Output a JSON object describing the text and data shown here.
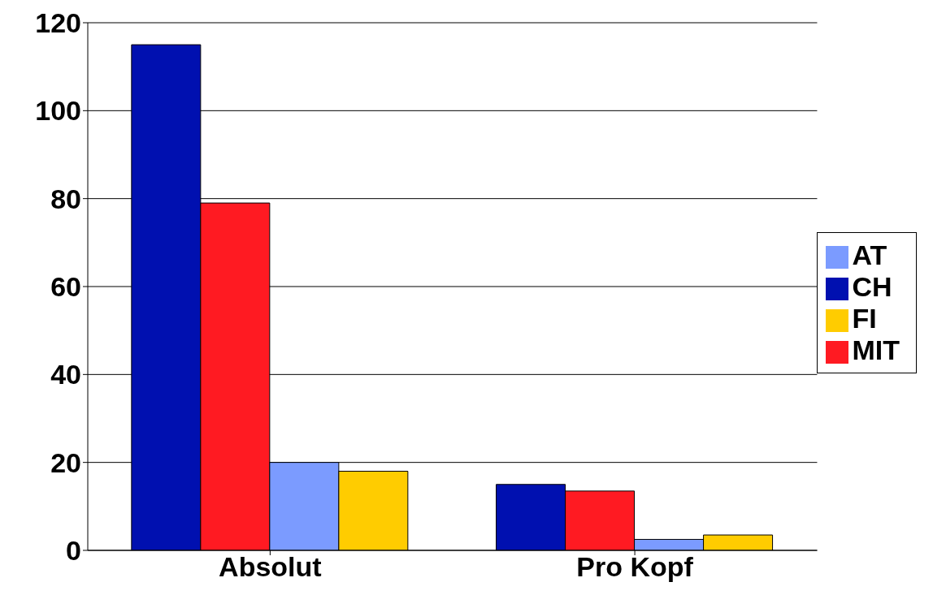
{
  "chart_data": {
    "type": "bar",
    "categories": [
      "Absolut",
      "Pro Kopf"
    ],
    "series": [
      {
        "name": "CH",
        "color": "#0010b0",
        "values": [
          115,
          15
        ]
      },
      {
        "name": "MIT",
        "color": "#ff1a22",
        "values": [
          79,
          13.5
        ]
      },
      {
        "name": "AT",
        "color": "#7b9bff",
        "values": [
          20,
          2.5
        ]
      },
      {
        "name": "FI",
        "color": "#ffcc00",
        "values": [
          18,
          3.5
        ]
      }
    ],
    "ylim": [
      0,
      120
    ],
    "yticks": [
      0,
      20,
      40,
      60,
      80,
      100,
      120
    ],
    "grid": "y",
    "legend": "right"
  }
}
